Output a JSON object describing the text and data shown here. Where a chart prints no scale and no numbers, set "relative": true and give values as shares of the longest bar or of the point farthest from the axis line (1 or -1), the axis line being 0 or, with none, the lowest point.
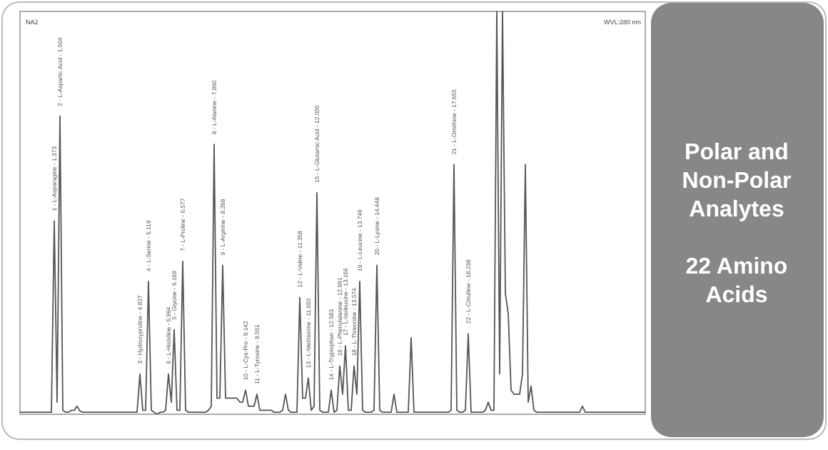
{
  "chart_data": {
    "type": "line",
    "relative": true,
    "title": "Polar and Non-Polar Analytes",
    "subtitle": "22 Amino Acids",
    "marker": "none",
    "line_style": "solid",
    "categories": [
      null,
      null,
      null,
      null,
      null,
      null,
      null,
      null,
      null,
      null,
      null,
      null,
      null,
      null,
      null,
      null,
      null,
      null,
      null,
      null,
      null,
      null,
      null,
      null,
      null,
      null,
      null,
      null,
      null,
      null,
      null,
      null,
      null,
      null,
      null,
      null,
      null,
      null,
      null,
      null,
      null,
      null,
      null,
      null,
      null,
      null,
      null,
      null,
      null,
      null,
      null,
      null,
      null,
      null,
      null,
      null,
      null,
      null,
      null,
      null,
      null,
      null,
      null,
      null,
      null,
      null,
      null,
      null,
      null,
      null,
      null,
      null,
      null,
      null,
      null,
      null,
      null,
      null,
      null,
      null,
      null,
      null,
      null,
      null,
      null,
      null,
      null,
      null,
      null,
      null,
      null,
      null,
      null,
      null,
      null,
      null,
      null,
      null,
      null,
      null,
      null,
      null,
      null,
      null,
      null,
      null,
      null,
      null,
      null,
      null,
      null,
      null,
      null,
      null,
      null,
      null,
      null,
      null,
      null,
      null,
      null,
      null,
      null,
      null,
      null,
      null,
      null,
      null,
      null,
      null,
      null,
      null,
      null,
      null,
      null,
      null,
      null,
      null,
      null,
      null,
      null,
      null,
      null,
      null,
      null,
      null,
      null,
      null,
      null,
      null,
      null,
      null,
      null,
      null,
      null,
      null,
      null,
      null,
      null,
      null,
      null,
      null,
      null,
      null,
      null,
      null,
      null,
      null,
      null,
      null,
      null,
      null,
      null,
      null,
      null,
      null,
      null,
      null,
      null,
      null,
      null,
      null,
      null,
      null,
      null,
      null,
      null,
      null,
      null,
      null,
      null,
      null,
      null,
      null,
      null,
      null,
      null,
      null,
      null,
      null,
      null,
      null,
      null,
      null,
      null,
      null,
      null,
      null,
      null,
      null,
      null,
      null,
      null,
      null,
      null,
      null,
      null,
      null,
      null,
      null
    ],
    "series": [
      {
        "color": "#555555",
        "values": [
          0.005,
          0.005,
          0.005,
          0.005,
          0.005,
          0.005,
          0.005,
          0.005,
          0.005,
          0.005,
          0.005,
          0.005,
          0.48,
          0.03,
          0.74,
          0.01,
          0.005,
          0.005,
          0.01,
          0.01,
          0.02,
          0.008,
          0.005,
          0.005,
          0.005,
          0.005,
          0.005,
          0.005,
          0.005,
          0.005,
          0.005,
          0.005,
          0.005,
          0.005,
          0.005,
          0.005,
          0.005,
          0.005,
          0.005,
          0.005,
          0.005,
          0.005,
          0.1,
          0.01,
          0.01,
          0.33,
          0.01,
          0.005,
          0,
          0.005,
          0.005,
          0.01,
          0.1,
          0.03,
          0.21,
          0.01,
          0.01,
          0.38,
          0.01,
          0.005,
          0.005,
          0.005,
          0.005,
          0.005,
          0.005,
          0.005,
          0.01,
          0.02,
          0.67,
          0.04,
          0.04,
          0.37,
          0.04,
          0.04,
          0.04,
          0.04,
          0.04,
          0.03,
          0.03,
          0.06,
          0.02,
          0.02,
          0.02,
          0.05,
          0.01,
          0.01,
          0.01,
          0.01,
          0.01,
          0.005,
          0.005,
          0.005,
          0.01,
          0.05,
          0.01,
          0.005,
          0.005,
          0.005,
          0.29,
          0.04,
          0.04,
          0.09,
          0.01,
          0.02,
          0.55,
          0.01,
          0.005,
          0.005,
          0.005,
          0.06,
          0.005,
          0.01,
          0.12,
          0.05,
          0.17,
          0.01,
          0.01,
          0.12,
          0.05,
          0.33,
          0.01,
          0.005,
          0.005,
          0.005,
          0.01,
          0.37,
          0.01,
          0.005,
          0.005,
          0.005,
          0.005,
          0.05,
          0.005,
          0.005,
          0.005,
          0.005,
          0.005,
          0.19,
          0.005,
          0.005,
          0.005,
          0.005,
          0.005,
          0.005,
          0.005,
          0.005,
          0.005,
          0.005,
          0.005,
          0.005,
          0.005,
          0.01,
          0.62,
          0.01,
          0.005,
          0.005,
          0.01,
          0.2,
          0.005,
          0.005,
          0.005,
          0.005,
          0.005,
          0.01,
          0.03,
          0.01,
          0.01,
          1,
          0.1,
          1,
          0.3,
          0.25,
          0.06,
          0.05,
          0.05,
          0.05,
          0.1,
          0.62,
          0.03,
          0.07,
          0.01,
          0.005,
          0.005,
          0.005,
          0.005,
          0.005,
          0.005,
          0.005,
          0.005,
          0.005,
          0.005,
          0.005,
          0.005,
          0.005,
          0.005,
          0.005,
          0.005,
          0.02,
          0.005,
          0.005,
          0.005,
          0.005,
          0.005,
          0.005,
          0.005,
          0.005,
          0.005,
          0.005,
          0.005,
          0.005,
          0.005,
          0.005,
          0.005,
          0.005,
          0.005,
          0.005,
          0.005,
          0.005,
          0.005,
          0.005
        ]
      }
    ],
    "annotations": [
      "NA2",
      "WVL:280 nm",
      {
        "text": "1 - L-Asparagine - 1.373",
        "y": 0.48
      },
      {
        "text": "2 - L-Aspartic Acid - 1.504",
        "y": 0.74
      },
      {
        "text": "3 - Hydroxyproline - 4.827",
        "y": 0.1
      },
      {
        "text": "4 - L-Serine - 5.119",
        "y": 0.33
      },
      {
        "text": "6 - L-Histidine - 5.994",
        "y": 0.1
      },
      {
        "text": "5 - Glycine - 6.169",
        "y": 0.21
      },
      {
        "text": "7 - L-Proline - 6.577",
        "y": 0.38
      },
      {
        "text": "8 - L-Alanine - 7.860",
        "y": 0.67
      },
      {
        "text": "9 - L-Arginine - 8.268",
        "y": 0.37
      },
      {
        "text": "10 - L-Cys-Pro - 9.142",
        "y": 0.06
      },
      {
        "text": "11 - L-Tyrosine - 9.551",
        "y": 0.05
      },
      {
        "text": "12 - L-Valine - 11.358",
        "y": 0.29
      },
      {
        "text": "13 - L-Methionine - 11.650",
        "y": 0.09
      },
      {
        "text": "15 - L-Glutamic Acid - 12.000",
        "y": 0.55
      },
      {
        "text": "14 - L-Tryptophan - 12.583",
        "y": 0.06
      },
      {
        "text": "16 - L-Phenylalanine - 12.991",
        "y": 0.12
      },
      {
        "text": "17 - L-Isoleucine - 13.166",
        "y": 0.17
      },
      {
        "text": "18 - L-Threonine - 13.574",
        "y": 0.12
      },
      {
        "text": "19 - L-Leucine - 13.749",
        "y": 0.33
      },
      {
        "text": "20 - L-Lysine - 14.448",
        "y": 0.37
      },
      {
        "text": "21 - L-Ornithine - 17.655",
        "y": 0.62
      },
      {
        "text": "22 - L-Citrulline - 18.238",
        "y": 0.2
      }
    ]
  }
}
